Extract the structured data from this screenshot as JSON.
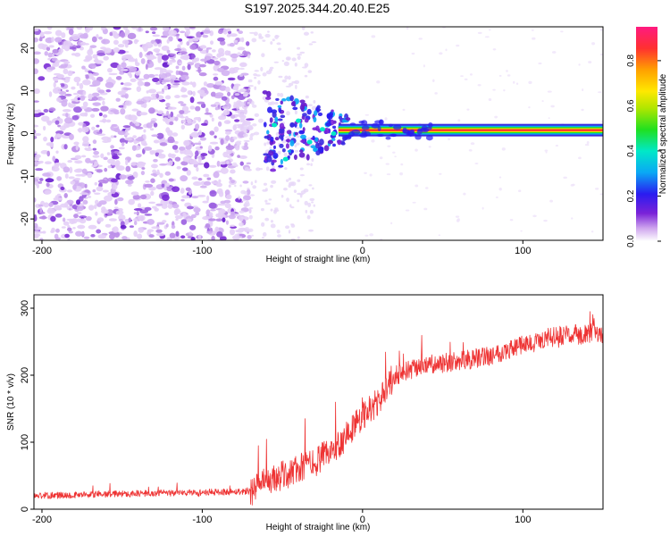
{
  "figure_title": "S197.2025.344.20.40.E25",
  "chart_data": [
    {
      "type": "heatmap",
      "title": "S197.2025.344.20.40.E25",
      "xlabel": "Height of straight line (km)",
      "ylabel": "Frequency (Hz)",
      "xlim": [
        -205,
        150
      ],
      "ylim": [
        -25,
        25
      ],
      "xticks": [
        -200,
        -100,
        0,
        100
      ],
      "yticks": [
        -20,
        -10,
        0,
        10,
        20
      ],
      "colorbar": {
        "label": "Normalized spectral amplitude",
        "range": [
          0,
          0.95
        ],
        "ticks": [
          0.0,
          0.2,
          0.4,
          0.6,
          0.8
        ]
      },
      "description_values": {
        "noise_region_x": [
          -205,
          -70
        ],
        "transition_region_x": [
          -70,
          0
        ],
        "signal_line_frequency_hz": 0.8,
        "signal_line_x": [
          0,
          150
        ]
      }
    },
    {
      "type": "line",
      "xlabel": "Height of straight line (km)",
      "ylabel": "SNR (10 * v/v)",
      "xlim": [
        -205,
        150
      ],
      "ylim": [
        0,
        320
      ],
      "xticks": [
        -200,
        -100,
        0,
        100
      ],
      "yticks": [
        0,
        100,
        200,
        300
      ],
      "series": [
        {
          "name": "SNR",
          "color": "#ee3333",
          "x": [
            -205,
            -150,
            -100,
            -70,
            -60,
            -40,
            -30,
            -20,
            -10,
            0,
            10,
            20,
            40,
            60,
            80,
            100,
            120,
            140,
            150
          ],
          "values": [
            20,
            23,
            25,
            27,
            40,
            60,
            70,
            85,
            110,
            140,
            160,
            200,
            215,
            220,
            230,
            245,
            258,
            262,
            262
          ]
        }
      ]
    }
  ]
}
